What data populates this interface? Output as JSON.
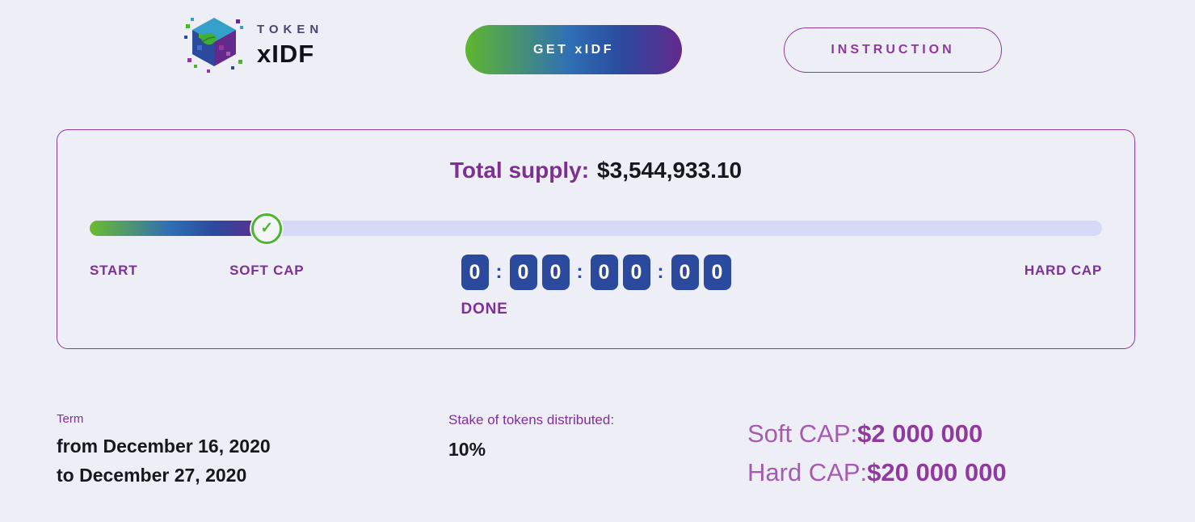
{
  "theme": {
    "background": "#edeef6",
    "accent_purple": "#8d3a9c",
    "text_purple": "#7d3099",
    "countdown_navy": "#2b4a9e",
    "progress_green": "#6cbb2f",
    "marker_green": "#4fb32c",
    "track_color": "#d7daf6",
    "check_icon": "✓"
  },
  "header": {
    "logo": {
      "top": "TOKEN",
      "bottom": "xIDF"
    },
    "get_button_label": "GET xIDF",
    "instruction_button_label": "INSTRUCTION"
  },
  "supply_card": {
    "total_supply_label": "Total supply:",
    "total_supply_value": "$3,544,933.10",
    "progress_percent": 17.5,
    "marker_percent": 17.5,
    "bar_labels": {
      "start": "START",
      "soft_cap": "SOFT CAP",
      "hard_cap": "HARD CAP"
    },
    "countdown": {
      "digits": [
        "0",
        "0",
        "0",
        "0",
        "0",
        "0",
        "0"
      ],
      "separator": ":",
      "status": "DONE"
    }
  },
  "details": {
    "term": {
      "label": "Term",
      "from": "from December 16, 2020",
      "to": "to December 27, 2020"
    },
    "stake": {
      "label": "Stake of tokens distributed:",
      "value": "10%"
    },
    "caps": [
      {
        "label": "Soft CAP:",
        "value": "$2 000 000"
      },
      {
        "label": "Hard CAP:",
        "value": "$20 000 000"
      }
    ]
  }
}
